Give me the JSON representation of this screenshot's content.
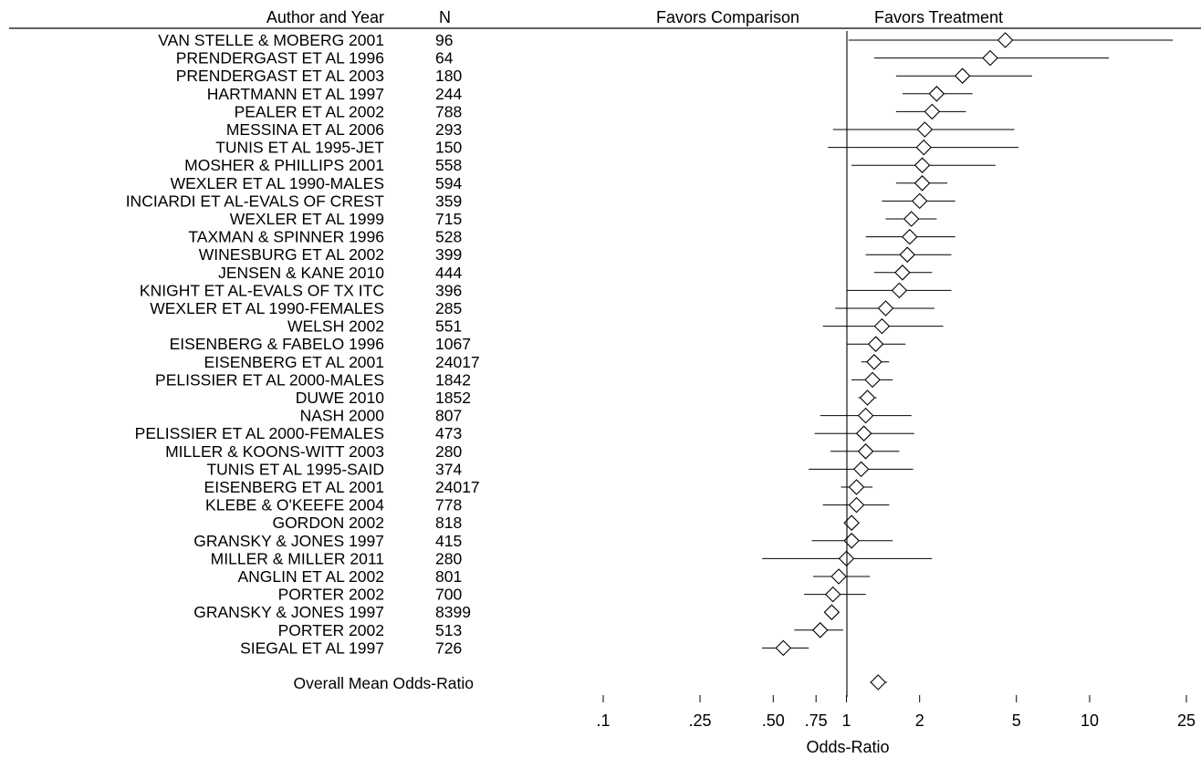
{
  "header": {
    "author_col": "Author and Year",
    "n_col": "N",
    "favors_left": "Favors Comparison",
    "favors_right": "Favors Treatment"
  },
  "chart_data": {
    "type": "forest",
    "xlabel": "Odds-Ratio",
    "x_scale": "log",
    "xlim": [
      0.1,
      25
    ],
    "xticks": [
      {
        "value": 0.1,
        "label": ".1"
      },
      {
        "value": 0.25,
        "label": ".25"
      },
      {
        "value": 0.5,
        "label": ".50"
      },
      {
        "value": 0.75,
        "label": ".75"
      },
      {
        "value": 1,
        "label": "1"
      },
      {
        "value": 2,
        "label": "2"
      },
      {
        "value": 5,
        "label": "5"
      },
      {
        "value": 10,
        "label": "10"
      },
      {
        "value": 25,
        "label": "25"
      }
    ],
    "reference_line": 1,
    "studies": [
      {
        "label": "VAN STELLE & MOBERG 2001",
        "n": "96",
        "or": 4.5,
        "ci": [
          1.02,
          22.0
        ]
      },
      {
        "label": "PRENDERGAST ET AL 1996",
        "n": "64",
        "or": 3.9,
        "ci": [
          1.3,
          12.0
        ]
      },
      {
        "label": "PRENDERGAST ET AL 2003",
        "n": "180",
        "or": 3.0,
        "ci": [
          1.6,
          5.8
        ]
      },
      {
        "label": "HARTMANN ET AL 1997",
        "n": "244",
        "or": 2.35,
        "ci": [
          1.7,
          3.3
        ]
      },
      {
        "label": "PEALER ET AL 2002",
        "n": "788",
        "or": 2.25,
        "ci": [
          1.6,
          3.1
        ]
      },
      {
        "label": "MESSINA ET AL 2006",
        "n": "293",
        "or": 2.1,
        "ci": [
          0.88,
          4.9
        ]
      },
      {
        "label": "TUNIS ET AL 1995-JET",
        "n": "150",
        "or": 2.08,
        "ci": [
          0.84,
          5.1
        ]
      },
      {
        "label": "MOSHER & PHILLIPS 2001",
        "n": "558",
        "or": 2.05,
        "ci": [
          1.05,
          4.1
        ]
      },
      {
        "label": "WEXLER ET AL 1990-MALES",
        "n": "594",
        "or": 2.05,
        "ci": [
          1.6,
          2.6
        ]
      },
      {
        "label": "INCIARDI ET AL-EVALS OF CREST",
        "n": "359",
        "or": 2.0,
        "ci": [
          1.4,
          2.8
        ]
      },
      {
        "label": "WEXLER ET AL 1999",
        "n": "715",
        "or": 1.85,
        "ci": [
          1.45,
          2.35
        ]
      },
      {
        "label": "TAXMAN & SPINNER 1996",
        "n": "528",
        "or": 1.82,
        "ci": [
          1.2,
          2.8
        ]
      },
      {
        "label": "WINESBURG ET AL 2002",
        "n": "399",
        "or": 1.78,
        "ci": [
          1.2,
          2.7
        ]
      },
      {
        "label": "JENSEN & KANE 2010",
        "n": "444",
        "or": 1.7,
        "ci": [
          1.3,
          2.25
        ]
      },
      {
        "label": "KNIGHT ET AL-EVALS OF TX ITC",
        "n": "396",
        "or": 1.65,
        "ci": [
          1.0,
          2.7
        ]
      },
      {
        "label": "WEXLER ET AL 1990-FEMALES",
        "n": "285",
        "or": 1.45,
        "ci": [
          0.9,
          2.3
        ]
      },
      {
        "label": "WELSH 2002",
        "n": "551",
        "or": 1.4,
        "ci": [
          0.8,
          2.5
        ]
      },
      {
        "label": "EISENBERG & FABELO 1996",
        "n": "1067",
        "or": 1.32,
        "ci": [
          1.0,
          1.75
        ]
      },
      {
        "label": "EISENBERG ET AL 2001",
        "n": "24017",
        "or": 1.3,
        "ci": [
          1.15,
          1.5
        ]
      },
      {
        "label": "PELISSIER ET AL 2000-MALES",
        "n": "1842",
        "or": 1.28,
        "ci": [
          1.05,
          1.55
        ]
      },
      {
        "label": "DUWE 2010",
        "n": "1852",
        "or": 1.22,
        "ci": [
          1.12,
          1.33
        ]
      },
      {
        "label": "NASH 2000",
        "n": "807",
        "or": 1.2,
        "ci": [
          0.78,
          1.85
        ]
      },
      {
        "label": "PELISSIER ET AL 2000-FEMALES",
        "n": "473",
        "or": 1.18,
        "ci": [
          0.74,
          1.9
        ]
      },
      {
        "label": "MILLER & KOONS-WITT 2003",
        "n": "280",
        "or": 1.2,
        "ci": [
          0.86,
          1.65
        ]
      },
      {
        "label": "TUNIS ET AL 1995-SAID",
        "n": "374",
        "or": 1.15,
        "ci": [
          0.7,
          1.88
        ]
      },
      {
        "label": "EISENBERG ET AL 2001",
        "n": "24017",
        "or": 1.1,
        "ci": [
          0.95,
          1.28
        ]
      },
      {
        "label": "KLEBE & O'KEEFE 2004",
        "n": "778",
        "or": 1.1,
        "ci": [
          0.8,
          1.5
        ]
      },
      {
        "label": "GORDON 2002",
        "n": "818",
        "or": 1.05,
        "ci": [
          0.98,
          1.12
        ]
      },
      {
        "label": "GRANSKY & JONES 1997",
        "n": "415",
        "or": 1.05,
        "ci": [
          0.72,
          1.55
        ]
      },
      {
        "label": "MILLER & MILLER 2011",
        "n": "280",
        "or": 1.0,
        "ci": [
          0.45,
          2.25
        ]
      },
      {
        "label": "ANGLIN ET AL 2002",
        "n": "801",
        "or": 0.93,
        "ci": [
          0.73,
          1.25
        ]
      },
      {
        "label": "PORTER 2002",
        "n": "700",
        "or": 0.88,
        "ci": [
          0.67,
          1.2
        ]
      },
      {
        "label": "GRANSKY & JONES 1997",
        "n": "8399",
        "or": 0.87,
        "ci": [
          0.84,
          0.92
        ]
      },
      {
        "label": "PORTER 2002",
        "n": "513",
        "or": 0.78,
        "ci": [
          0.61,
          0.97
        ]
      },
      {
        "label": "SIEGAL ET AL 1997",
        "n": "726",
        "or": 0.55,
        "ci": [
          0.45,
          0.7
        ]
      }
    ],
    "overall": {
      "label": "Overall Mean Odds-Ratio",
      "or": 1.35,
      "ci": [
        1.25,
        1.47
      ]
    }
  }
}
